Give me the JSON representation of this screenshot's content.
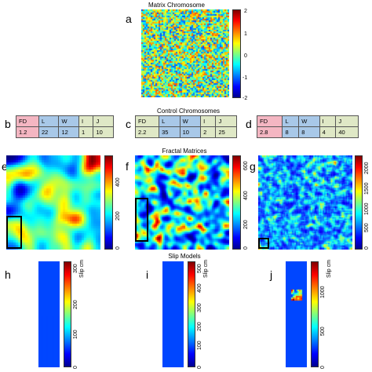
{
  "matrix": {
    "title": "Matrix Chromosome",
    "label": "a",
    "ticks": [
      "2",
      "1",
      "0",
      "-1",
      "-2"
    ]
  },
  "control": {
    "title": "Control Chromosomes",
    "tables": [
      {
        "label": "b",
        "header": [
          "FD",
          "L",
          "W",
          "I",
          "J"
        ],
        "values": [
          "1.2",
          "22",
          "12",
          "1",
          "10"
        ]
      },
      {
        "label": "c",
        "header": [
          "FD",
          "L",
          "W",
          "I",
          "J"
        ],
        "values": [
          "2.2",
          "35",
          "10",
          "2",
          "25"
        ]
      },
      {
        "label": "d",
        "header": [
          "FD",
          "L",
          "W",
          "I",
          "J"
        ],
        "values": [
          "2.8",
          "8",
          "8",
          "4",
          "40"
        ]
      }
    ]
  },
  "fractal": {
    "title": "Fractal Matrices",
    "panels": [
      {
        "label": "e",
        "ticks": [
          "400",
          "200",
          "0"
        ]
      },
      {
        "label": "f",
        "ticks": [
          "600",
          "400",
          "200",
          "0"
        ]
      },
      {
        "label": "g",
        "ticks": [
          "2000",
          "1500",
          "1000",
          "500",
          "0"
        ]
      }
    ]
  },
  "slip": {
    "title": "Slip Models",
    "panels": [
      {
        "label": "h",
        "unit": "Slip cm",
        "ticks": [
          "300",
          "200",
          "100",
          "0"
        ]
      },
      {
        "label": "i",
        "unit": "Slip cm",
        "ticks": [
          "500",
          "400",
          "300",
          "200",
          "100",
          "0"
        ]
      },
      {
        "label": "j",
        "unit": "Slip cm",
        "ticks": [
          "1000",
          "500",
          "0"
        ]
      }
    ]
  },
  "colors": {
    "table_fd": "#f4b6c2",
    "table_lw": "#a8c8e8",
    "table_ij": "#dfe8c6",
    "colormap": "jet"
  }
}
